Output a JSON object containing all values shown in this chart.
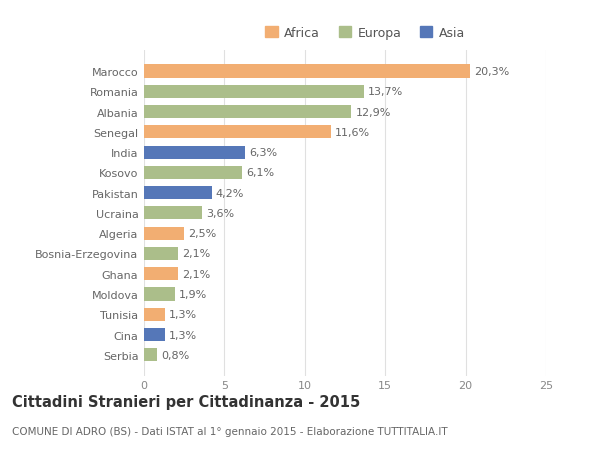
{
  "countries": [
    "Marocco",
    "Romania",
    "Albania",
    "Senegal",
    "India",
    "Kosovo",
    "Pakistan",
    "Ucraina",
    "Algeria",
    "Bosnia-Erzegovina",
    "Ghana",
    "Moldova",
    "Tunisia",
    "Cina",
    "Serbia"
  ],
  "values": [
    20.3,
    13.7,
    12.9,
    11.6,
    6.3,
    6.1,
    4.2,
    3.6,
    2.5,
    2.1,
    2.1,
    1.9,
    1.3,
    1.3,
    0.8
  ],
  "continents": [
    "Africa",
    "Europa",
    "Europa",
    "Africa",
    "Asia",
    "Europa",
    "Asia",
    "Europa",
    "Africa",
    "Europa",
    "Africa",
    "Europa",
    "Africa",
    "Asia",
    "Europa"
  ],
  "colors": {
    "Africa": "#F2AE72",
    "Europa": "#ABBE8A",
    "Asia": "#5577B8"
  },
  "legend_labels": [
    "Africa",
    "Europa",
    "Asia"
  ],
  "legend_colors": [
    "#F2AE72",
    "#ABBE8A",
    "#5577B8"
  ],
  "title": "Cittadini Stranieri per Cittadinanza - 2015",
  "subtitle": "COMUNE DI ADRO (BS) - Dati ISTAT al 1° gennaio 2015 - Elaborazione TUTTITALIA.IT",
  "xlim": [
    0,
    25
  ],
  "xticks": [
    0,
    5,
    10,
    15,
    20,
    25
  ],
  "bg_color": "#ffffff",
  "grid_color": "#e0e0e0",
  "bar_height": 0.65,
  "label_fontsize": 8.0,
  "tick_fontsize": 8.0,
  "title_fontsize": 10.5,
  "subtitle_fontsize": 7.5
}
